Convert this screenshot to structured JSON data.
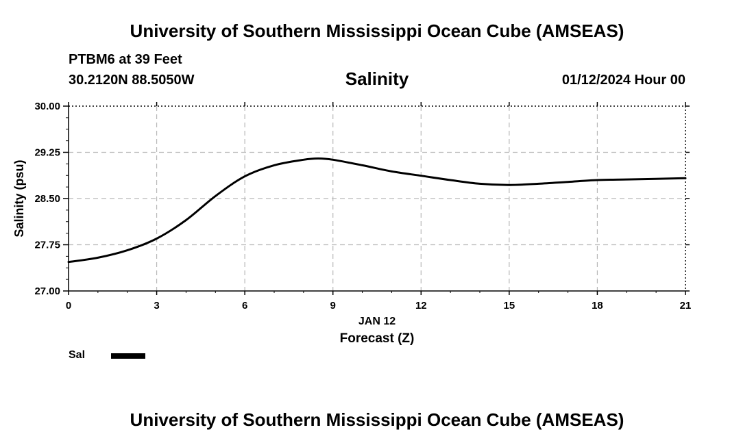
{
  "header": {
    "title": "University of Southern Mississippi Ocean Cube (AMSEAS)",
    "station": "PTBM6 at 39 Feet",
    "coords": "30.2120N  88.5050W",
    "variable": "Salinity",
    "datetime": "01/12/2024 Hour 00"
  },
  "footer": {
    "title": "University of Southern Mississippi Ocean Cube (AMSEAS)"
  },
  "legend": {
    "label": "Sal"
  },
  "chart_data": {
    "type": "line",
    "title": "Salinity",
    "xlabel": "Forecast (Z)",
    "xdate_label": "JAN 12",
    "ylabel": "Salinity (psu)",
    "xlim": [
      0,
      21
    ],
    "ylim": [
      27.0,
      30.0
    ],
    "xticks": [
      0,
      3,
      6,
      9,
      12,
      15,
      18,
      21
    ],
    "xtick_labels": [
      "0",
      "3",
      "6",
      "9",
      "12",
      "15",
      "18",
      "21"
    ],
    "yticks": [
      27.0,
      27.75,
      28.5,
      29.25,
      30.0
    ],
    "ytick_labels": [
      "27.00",
      "27.75",
      "28.50",
      "29.25",
      "30.00"
    ],
    "grid": true,
    "series": [
      {
        "name": "Sal",
        "color": "#000000",
        "x": [
          0,
          1,
          2,
          3,
          4,
          5,
          6,
          7,
          8,
          8.5,
          9,
          10,
          11,
          12,
          13,
          14,
          15,
          16,
          17,
          18,
          19,
          20,
          21
        ],
        "y": [
          27.47,
          27.54,
          27.66,
          27.85,
          28.15,
          28.54,
          28.86,
          29.04,
          29.13,
          29.15,
          29.13,
          29.04,
          28.94,
          28.87,
          28.8,
          28.74,
          28.72,
          28.74,
          28.77,
          28.8,
          28.81,
          28.82,
          28.83
        ]
      }
    ]
  }
}
